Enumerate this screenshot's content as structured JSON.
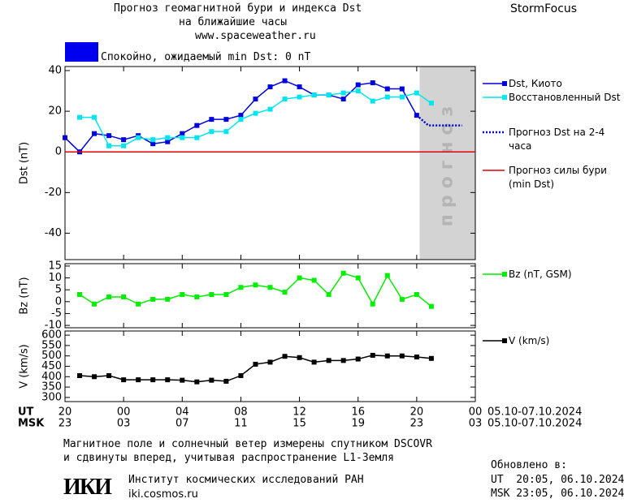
{
  "header": {
    "title": "Прогноз геомагнитной бури и индекса Dst",
    "title2": "на ближайшие часы",
    "url": "www.spaceweather.ru",
    "brand": "StormFocus",
    "status": "Спокойно, ожидаемый min Dst: 0 nT",
    "status_color": "#0000ee"
  },
  "chart_data": [
    {
      "type": "line",
      "ylabel": "Dst (nT)",
      "xlim": [
        20,
        48
      ],
      "ylim": [
        -53,
        42
      ],
      "yticks": [
        -40,
        -20,
        0,
        20,
        40
      ],
      "forecast_band": {
        "label": "прогноз",
        "range": [
          44.2,
          48
        ],
        "color": "#d3d3d3"
      },
      "series": [
        {
          "name": "Dst, Киото",
          "color": "#0000dd",
          "marker": "square",
          "style": "solid",
          "x": [
            20,
            21,
            22,
            23,
            24,
            25,
            26,
            27,
            28,
            29,
            30,
            31,
            32,
            33,
            34,
            35,
            36,
            37,
            38,
            39,
            40,
            41,
            42,
            43,
            44
          ],
          "values": [
            7,
            0,
            9,
            8,
            6,
            8,
            4,
            5,
            9,
            13,
            16,
            16,
            18,
            26,
            32,
            35,
            32,
            28,
            28,
            26,
            33,
            34,
            31,
            31,
            18
          ]
        },
        {
          "name": "Восстановленный Dst",
          "color": "#00e5ee",
          "marker": "square",
          "style": "solid",
          "x": [
            21,
            22,
            23,
            24,
            25,
            26,
            27,
            28,
            29,
            30,
            31,
            32,
            33,
            34,
            35,
            36,
            37,
            38,
            39,
            40,
            41,
            42,
            43,
            44,
            45
          ],
          "values": [
            17,
            17,
            3,
            3,
            7,
            6,
            7,
            7,
            7,
            10,
            10,
            16,
            19,
            21,
            26,
            27,
            28,
            28,
            29,
            30,
            25,
            27,
            27,
            29,
            24
          ]
        },
        {
          "name": "Прогноз Dst на 2-4 часа",
          "color": "#0000cc",
          "style": "dotted",
          "x": [
            44,
            44.8,
            47.1
          ],
          "values": [
            18,
            13,
            13
          ]
        },
        {
          "name": "Прогноз силы бури (min Dst)",
          "color": "#dd0000",
          "style": "solid",
          "x": [
            20,
            48
          ],
          "values": [
            0,
            0
          ]
        }
      ]
    },
    {
      "type": "line",
      "ylabel": "Bz (nT)",
      "xlim": [
        20,
        48
      ],
      "ylim": [
        -11,
        16
      ],
      "yticks": [
        -10,
        -5,
        0,
        5,
        10,
        15
      ],
      "series": [
        {
          "name": "Bz (nT, GSM)",
          "color": "#00ee00",
          "marker": "square",
          "style": "solid",
          "x": [
            21,
            22,
            23,
            24,
            25,
            26,
            27,
            28,
            29,
            30,
            31,
            32,
            33,
            34,
            35,
            36,
            37,
            38,
            39,
            40,
            41,
            42,
            43,
            44,
            45
          ],
          "values": [
            3,
            -1,
            2,
            2,
            -1,
            1,
            1,
            3,
            2,
            3,
            3,
            6,
            7,
            6,
            4,
            10,
            9,
            3,
            12,
            10,
            -1,
            11,
            1,
            3,
            -2
          ]
        }
      ]
    },
    {
      "type": "line",
      "ylabel": "V (km/s)",
      "xlim": [
        20,
        48
      ],
      "ylim": [
        280,
        620
      ],
      "yticks": [
        300,
        350,
        400,
        450,
        500,
        550,
        600
      ],
      "xticks": [
        20,
        {
          "value": 24,
          "label": "00"
        },
        {
          "value": 28,
          "label": "04"
        },
        {
          "value": 32,
          "label": "08"
        },
        {
          "value": 36,
          "label": "12"
        },
        {
          "value": 40,
          "label": "16"
        },
        {
          "value": 44,
          "label": "20"
        },
        {
          "value": 48,
          "label": "00"
        }
      ],
      "msk_ticks": [
        "23",
        "03",
        "07",
        "11",
        "15",
        "19",
        "23",
        "03"
      ],
      "ut_label": "UT",
      "msk_label": "MSK",
      "ut_dates": "05.10-07.10.2024",
      "msk_dates": "05.10-07.10.2024",
      "series": [
        {
          "name": "V (km/s)",
          "color": "#000000",
          "marker": "square",
          "style": "solid",
          "x": [
            21,
            22,
            23,
            24,
            25,
            26,
            27,
            28,
            29,
            30,
            31,
            32,
            33,
            34,
            35,
            36,
            37,
            38,
            39,
            40,
            41,
            42,
            43,
            44,
            45
          ],
          "values": [
            405,
            400,
            405,
            385,
            385,
            385,
            385,
            383,
            375,
            383,
            378,
            405,
            460,
            470,
            498,
            492,
            470,
            478,
            478,
            485,
            503,
            500,
            500,
            495,
            488
          ]
        }
      ]
    }
  ],
  "footer": {
    "note1": "Магнитное поле и солнечный ветер измерены спутником DSCOVR",
    "note2": "и сдвинуты вперед, учитывая распространение L1-Земля",
    "updated": "Обновлено в:",
    "updated_ut": "UT  20:05, 06.10.2024",
    "updated_msk": "MSK 23:05, 06.10.2024",
    "logo": "ИКИ",
    "institute": "Институт космических исследований РАН",
    "site": "iki.cosmos.ru"
  }
}
